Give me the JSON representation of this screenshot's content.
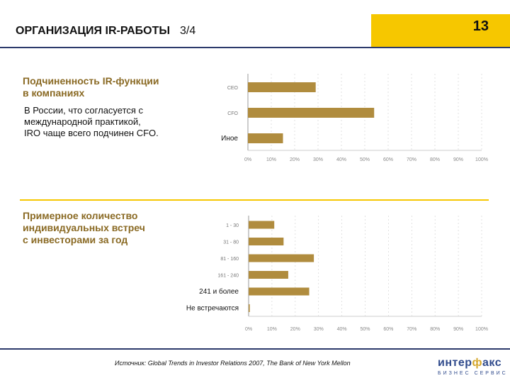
{
  "header": {
    "title": "ОРГАНИЗАЦИЯ IR-РАБОТЫ",
    "page_of": "3/4",
    "page_number": "13"
  },
  "section1": {
    "title": "Подчиненность IR-функции\nв компаниях",
    "text": "В России, что согласуется с\nмеждународной практикой,\nIRO чаще всего подчинен CFO."
  },
  "section2": {
    "title": "Примерное количество\nиндивидуальных встреч\nс инвесторами за год"
  },
  "footer": {
    "source": "Источник: Global Trends in Investor Relations 2007, The Bank of New York Mellon",
    "logo_main_a": "интер",
    "logo_main_b": "ф",
    "logo_main_c": "акс",
    "logo_sub": "БИЗНЕС СЕРВИС"
  },
  "colors": {
    "bar": "#b08c3e",
    "accent": "#f6c700",
    "rule": "#2c3a6b"
  },
  "chart_data": [
    {
      "type": "bar",
      "orientation": "horizontal",
      "categories": [
        "CEO",
        "CFO",
        "Иное"
      ],
      "values": [
        29,
        54,
        15
      ],
      "xticks": [
        "0%",
        "10%",
        "20%",
        "30%",
        "40%",
        "50%",
        "60%",
        "70%",
        "80%",
        "90%",
        "100%"
      ],
      "xlim": [
        0,
        100
      ]
    },
    {
      "type": "bar",
      "orientation": "horizontal",
      "categories": [
        "1 - 30",
        "31 - 80",
        "81 - 160",
        "161 - 240",
        "241 и более",
        "Не встречаются"
      ],
      "values": [
        11,
        15,
        28,
        17,
        26,
        0.5
      ],
      "xticks": [
        "0%",
        "10%",
        "20%",
        "30%",
        "40%",
        "50%",
        "60%",
        "70%",
        "80%",
        "90%",
        "100%"
      ],
      "xlim": [
        0,
        100
      ]
    }
  ]
}
